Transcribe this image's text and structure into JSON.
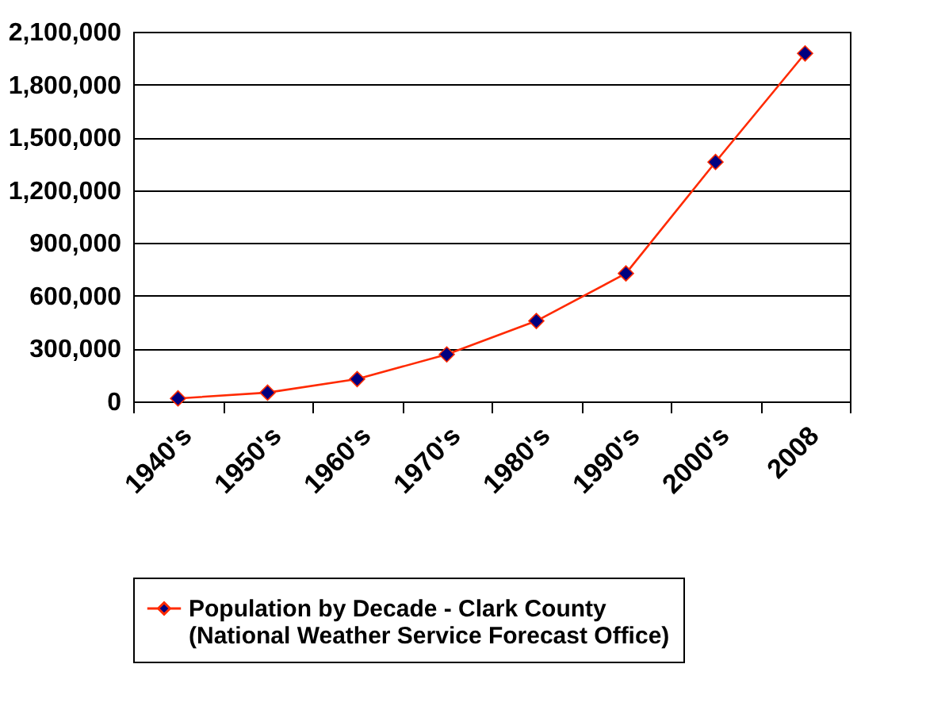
{
  "chart_data": {
    "type": "line",
    "categories": [
      "1940's",
      "1950's",
      "1960's",
      "1970's",
      "1980's",
      "1990's",
      "2000's",
      "2008"
    ],
    "series": [
      {
        "name": "Population by Decade - Clark County\n(National Weather Service Forecast Office)",
        "color": "#ff2a00",
        "values": [
          17000,
          50000,
          127000,
          267000,
          457000,
          727000,
          1360000,
          1977000
        ]
      }
    ],
    "ylim": [
      0,
      2100000
    ],
    "yticks": [
      0,
      {
        "value": 300000,
        "label": "300,000"
      },
      {
        "value": 600000,
        "label": "600,000"
      },
      {
        "value": 900000,
        "label": "900,000"
      },
      {
        "value": 1200000,
        "label": "1,200,000"
      },
      {
        "value": 1500000,
        "label": "1,500,000"
      },
      {
        "value": 1800000,
        "label": "1,800,000"
      },
      {
        "value": 2100000,
        "label": "2,100,000"
      }
    ],
    "grid": "y",
    "legend": "bottom",
    "marker": "diamond",
    "line_style": "solid"
  }
}
